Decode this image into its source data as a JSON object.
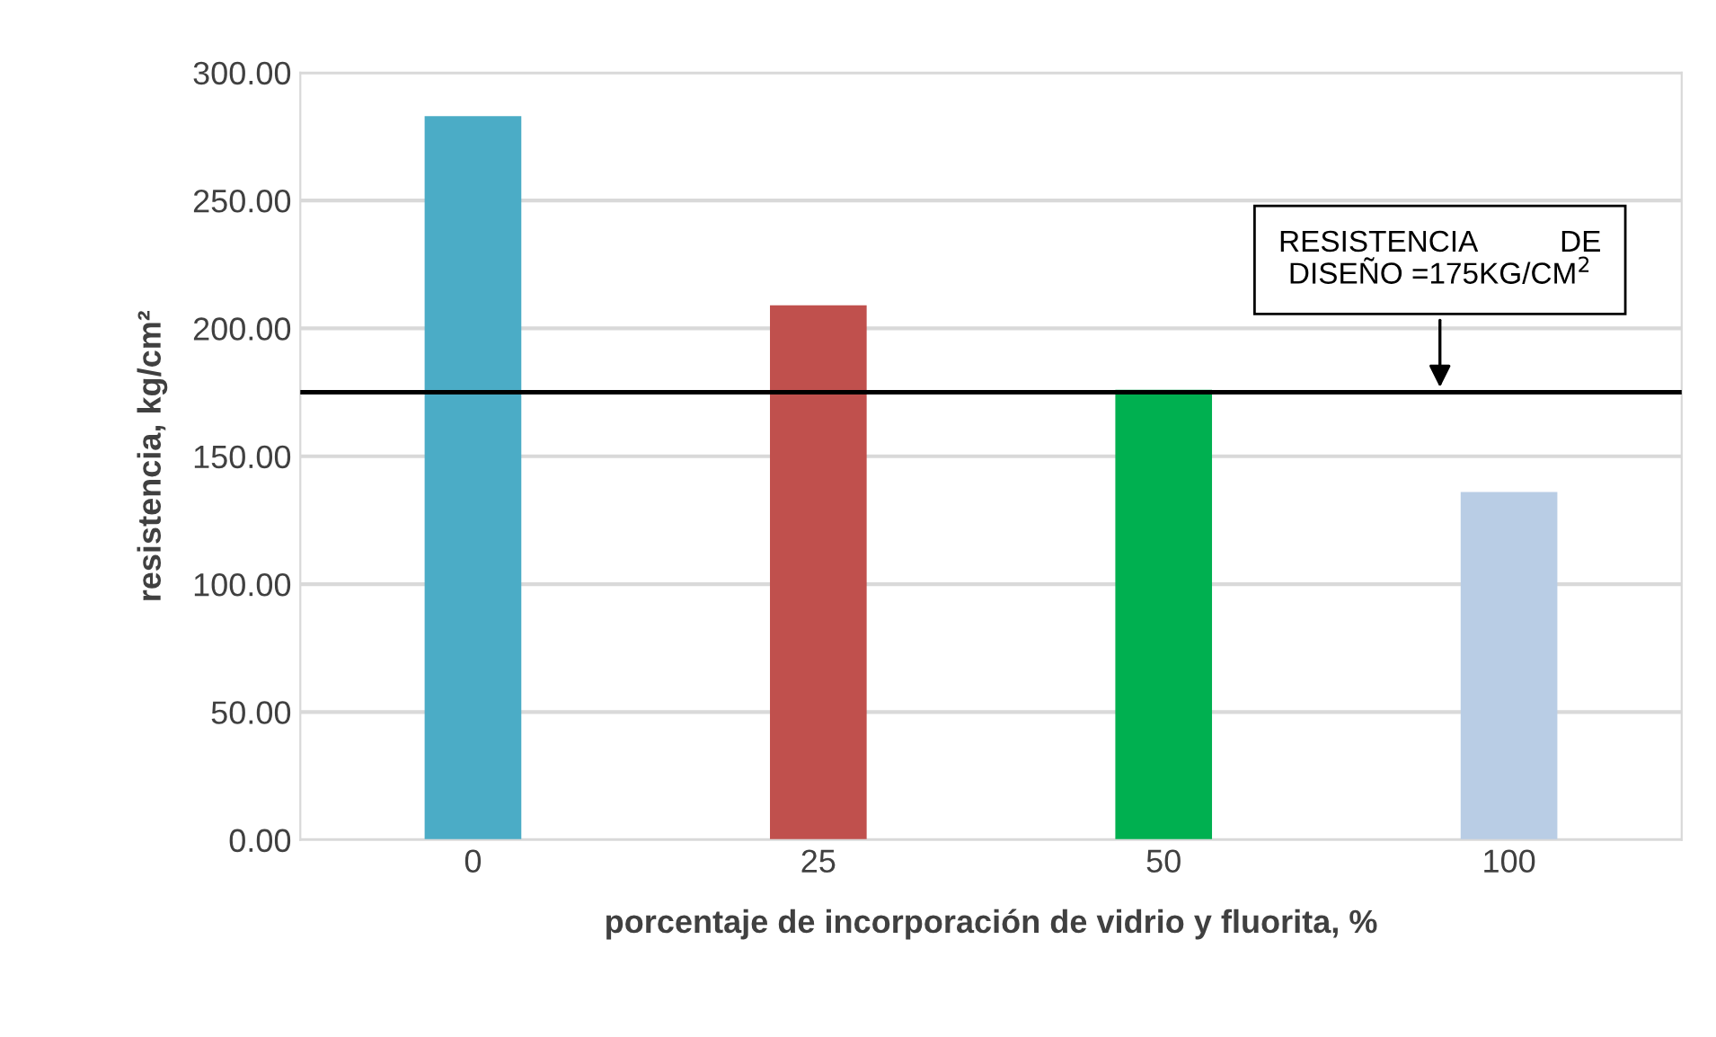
{
  "chart_data": {
    "type": "bar",
    "xlabel": "porcentaje de incorporación de vidrio y fluorita, %",
    "ylabel": "resistencia, kg/cm²",
    "categories": [
      "0",
      "25",
      "50",
      "100"
    ],
    "values": [
      283,
      209,
      176,
      136
    ],
    "colors": [
      "#4bacc6",
      "#c0504d",
      "#00b050",
      "#b9cde5"
    ],
    "ylim": [
      0,
      300
    ],
    "yticks": [
      {
        "value": 0,
        "label": "0.00"
      },
      {
        "value": 50,
        "label": "50.00"
      },
      {
        "value": 100,
        "label": "100.00"
      },
      {
        "value": 150,
        "label": "150.00"
      },
      {
        "value": 200,
        "label": "200.00"
      },
      {
        "value": 250,
        "label": "250.00"
      },
      {
        "value": 300,
        "label": "300.00"
      }
    ],
    "grid": "y",
    "ref_lines": [
      {
        "axis": "y",
        "value": 175,
        "label": "RESISTENCIA          DE\nDISEÑO =175KG/CM$^{2}$",
        "color": "#000000",
        "line_style": "solid"
      }
    ]
  }
}
